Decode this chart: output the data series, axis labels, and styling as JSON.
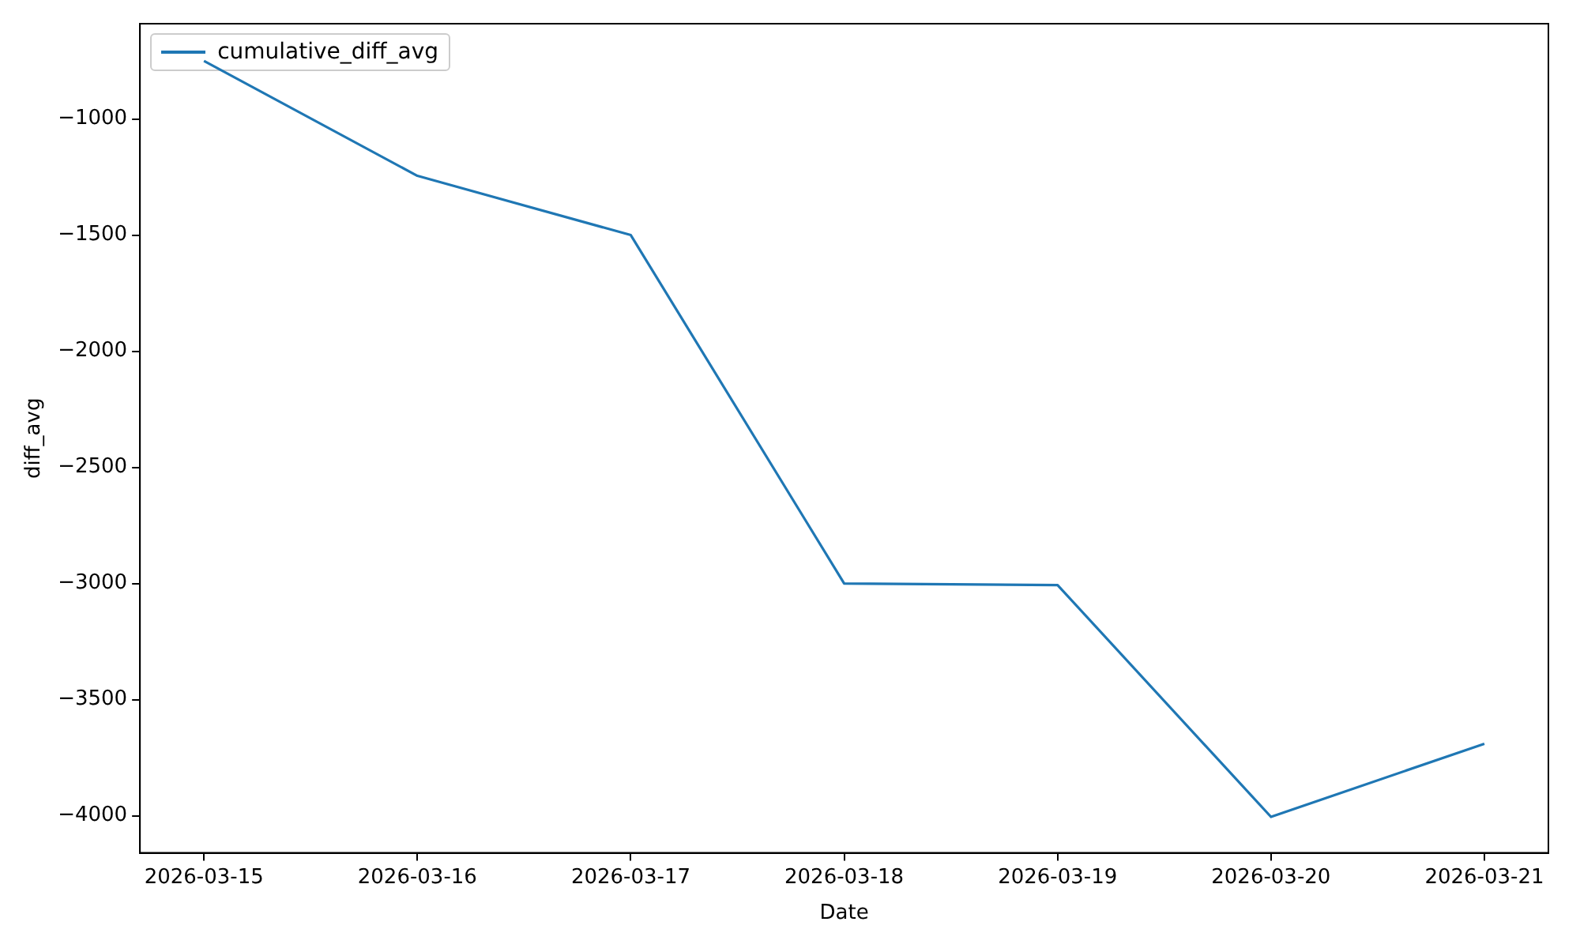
{
  "chart_data": {
    "type": "line",
    "xlabel": "Date",
    "ylabel": "diff_avg",
    "x": [
      "2026-03-15",
      "2026-03-16",
      "2026-03-17",
      "2026-03-18",
      "2026-03-19",
      "2026-03-20",
      "2026-03-21"
    ],
    "series": [
      {
        "name": "cumulative_diff_avg",
        "color": "#1f77b4",
        "values": [
          -750,
          -1245,
          -1500,
          -3000,
          -3007,
          -4005,
          -3690
        ]
      }
    ],
    "xlim": [
      "2026-03-14T16:48",
      "2026-03-21T07:12"
    ],
    "xticks": [
      "2026-03-15",
      "2026-03-16",
      "2026-03-17",
      "2026-03-18",
      "2026-03-19",
      "2026-03-20",
      "2026-03-21"
    ],
    "ylim": [
      -4160,
      -590
    ],
    "yticks": [
      -4000,
      -3500,
      -3000,
      -2500,
      -2000,
      -1500,
      -1000
    ],
    "grid": false,
    "legend": "top left",
    "marker": "none",
    "line_style": "solid"
  }
}
